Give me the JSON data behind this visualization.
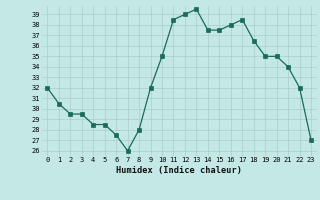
{
  "x": [
    0,
    1,
    2,
    3,
    4,
    5,
    6,
    7,
    8,
    9,
    10,
    11,
    12,
    13,
    14,
    15,
    16,
    17,
    18,
    19,
    20,
    21,
    22,
    23
  ],
  "y": [
    32,
    30.5,
    29.5,
    29.5,
    28.5,
    28.5,
    27.5,
    26,
    28,
    32,
    35,
    38.5,
    39,
    39.5,
    37.5,
    37.5,
    38,
    38.5,
    36.5,
    35,
    35,
    34,
    32,
    27
  ],
  "line_color": "#1a6b5a",
  "marker_color": "#1a6b5a",
  "bg_color": "#c4e8e6",
  "grid_color": "#a8ceca",
  "xlabel": "Humidex (Indice chaleur)",
  "xlim": [
    -0.5,
    23.5
  ],
  "ylim": [
    25.5,
    39.8
  ],
  "yticks": [
    26,
    27,
    28,
    29,
    30,
    31,
    32,
    33,
    34,
    35,
    36,
    37,
    38,
    39
  ],
  "xticks": [
    0,
    1,
    2,
    3,
    4,
    5,
    6,
    7,
    8,
    9,
    10,
    11,
    12,
    13,
    14,
    15,
    16,
    17,
    18,
    19,
    20,
    21,
    22,
    23
  ],
  "xtick_labels": [
    "0",
    "1",
    "2",
    "3",
    "4",
    "5",
    "6",
    "7",
    "8",
    "9",
    "10",
    "11",
    "12",
    "13",
    "14",
    "15",
    "16",
    "17",
    "18",
    "19",
    "20",
    "21",
    "22",
    "23"
  ]
}
